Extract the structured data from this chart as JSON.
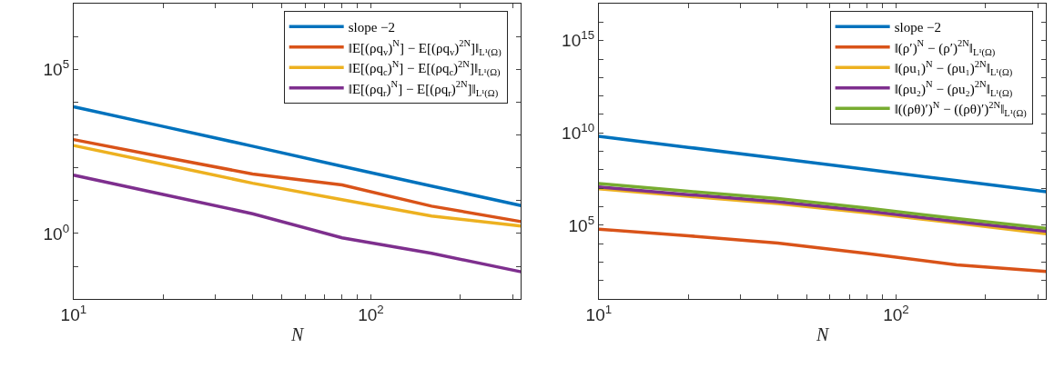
{
  "chart_data": [
    {
      "type": "line",
      "xlabel": "N",
      "log": "xy",
      "legend": "top right",
      "marker": "none",
      "line_style": "solid",
      "x": [
        10,
        20,
        40,
        80,
        160,
        320
      ],
      "xlim": [
        10,
        320
      ],
      "ylim": [
        0.01,
        10000000.0
      ],
      "xticks": [
        {
          "value": 10,
          "label": "10$^{1}$"
        },
        {
          "value": 20,
          "label": null
        },
        {
          "value": 30,
          "label": null
        },
        {
          "value": 40,
          "label": null
        },
        {
          "value": 50,
          "label": null
        },
        {
          "value": 60,
          "label": null
        },
        {
          "value": 70,
          "label": null
        },
        {
          "value": 80,
          "label": null
        },
        {
          "value": 90,
          "label": null
        },
        {
          "value": 100,
          "label": "10$^{2}$"
        },
        {
          "value": 200,
          "label": null
        },
        {
          "value": 300,
          "label": null
        }
      ],
      "yticks": [
        {
          "value": 0.1,
          "label": null
        },
        {
          "value": 1,
          "label": "10$^{0}$"
        },
        {
          "value": 10,
          "label": null
        },
        {
          "value": 100,
          "label": null
        },
        {
          "value": 1000,
          "label": null
        },
        {
          "value": 10000,
          "label": null
        },
        {
          "value": 100000,
          "label": "10$^{5}$"
        },
        {
          "value": 1000000,
          "label": null
        }
      ],
      "series": [
        {
          "name": "slope −2",
          "color": "#0072bd",
          "values": [
            7244,
            1820,
            457,
            112,
            28,
            7.1
          ]
        },
        {
          "name": "‖E[(ρq$_{v}$)$^{N}$] − E[(ρq$_{v}$)$^{2N}$]‖$_{L¹(Ω)}$",
          "color": "#d95319",
          "values": [
            724,
            214,
            65,
            30,
            6.8,
            2.3
          ]
        },
        {
          "name": "‖E[(ρq$_{c}$)$^{N}$] − E[(ρq$_{c}$)$^{2N}$]‖$_{L¹(Ω)}$",
          "color": "#edb120",
          "values": [
            479,
            129,
            34,
            10.7,
            3.4,
            1.7
          ]
        },
        {
          "name": "‖E[(ρq$_{r}$)$^{N}$] − E[(ρq$_{r}$)$^{2N}$]‖$_{L¹(Ω)}$",
          "color": "#7e2f8e",
          "values": [
            60,
            15.5,
            4.0,
            0.74,
            0.25,
            0.068
          ]
        }
      ]
    },
    {
      "type": "line",
      "xlabel": "N",
      "log": "xy",
      "legend": "top right",
      "marker": "none",
      "line_style": "solid",
      "x": [
        10,
        20,
        40,
        80,
        160,
        320
      ],
      "xlim": [
        10,
        320
      ],
      "ylim": [
        10,
        1e+17
      ],
      "xticks": [
        {
          "value": 10,
          "label": "10$^{1}$"
        },
        {
          "value": 20,
          "label": null
        },
        {
          "value": 30,
          "label": null
        },
        {
          "value": 40,
          "label": null
        },
        {
          "value": 50,
          "label": null
        },
        {
          "value": 60,
          "label": null
        },
        {
          "value": 70,
          "label": null
        },
        {
          "value": 80,
          "label": null
        },
        {
          "value": 90,
          "label": null
        },
        {
          "value": 100,
          "label": "10$^{2}$"
        },
        {
          "value": 200,
          "label": null
        },
        {
          "value": 300,
          "label": null
        }
      ],
      "yticks": [
        {
          "value": 100,
          "label": null
        },
        {
          "value": 1000,
          "label": null
        },
        {
          "value": 10000,
          "label": null
        },
        {
          "value": 100000,
          "label": "10$^{5}$"
        },
        {
          "value": 1000000,
          "label": null
        },
        {
          "value": 10000000.0,
          "label": null
        },
        {
          "value": 100000000.0,
          "label": null
        },
        {
          "value": 1000000000.0,
          "label": null
        },
        {
          "value": 10000000000.0,
          "label": "10$^{10}$"
        },
        {
          "value": 100000000000.0,
          "label": null
        },
        {
          "value": 1000000000000.0,
          "label": null
        },
        {
          "value": 10000000000000.0,
          "label": null
        },
        {
          "value": 100000000000000.0,
          "label": null
        },
        {
          "value": 1000000000000000.0,
          "label": "10$^{15}$"
        },
        {
          "value": 1e+16,
          "label": null
        }
      ],
      "series": [
        {
          "name": "slope −2",
          "color": "#0072bd",
          "values": [
            6600000000.0,
            1660000000.0,
            420000000.0,
            105000000.0,
            26000000.0,
            6600000.0
          ]
        },
        {
          "name": "‖(ρ′)$^{N}$ − (ρ′)$^{2N}$‖$_{L¹(Ω)}$",
          "color": "#d95319",
          "values": [
            62000.0,
            27000.0,
            11000.0,
            3000.0,
            720,
            320
          ]
        },
        {
          "name": "‖(ρu₁)$^{N}$ − (ρu₁)$^{2N}$‖$_{L¹(Ω)}$",
          "color": "#edb120",
          "values": [
            9500000.0,
            3700000.0,
            1500000.0,
            470000.0,
            130000.0,
            35000.0
          ]
        },
        {
          "name": "‖(ρu₂)$^{N}$ − (ρu₂)$^{2N}$‖$_{L¹(Ω)}$",
          "color": "#7e2f8e",
          "values": [
            12000000.0,
            4600000.0,
            1900000.0,
            590000.0,
            160000.0,
            48000.0
          ]
        },
        {
          "name": "‖((ρθ)′)$^{N}$ − ((ρθ)′)$^{2N}$‖$_{L¹(Ω)}$",
          "color": "#77ac30",
          "values": [
            18000000.0,
            6900000.0,
            2800000.0,
            850000.0,
            230000.0,
            69000.0
          ]
        }
      ]
    }
  ]
}
